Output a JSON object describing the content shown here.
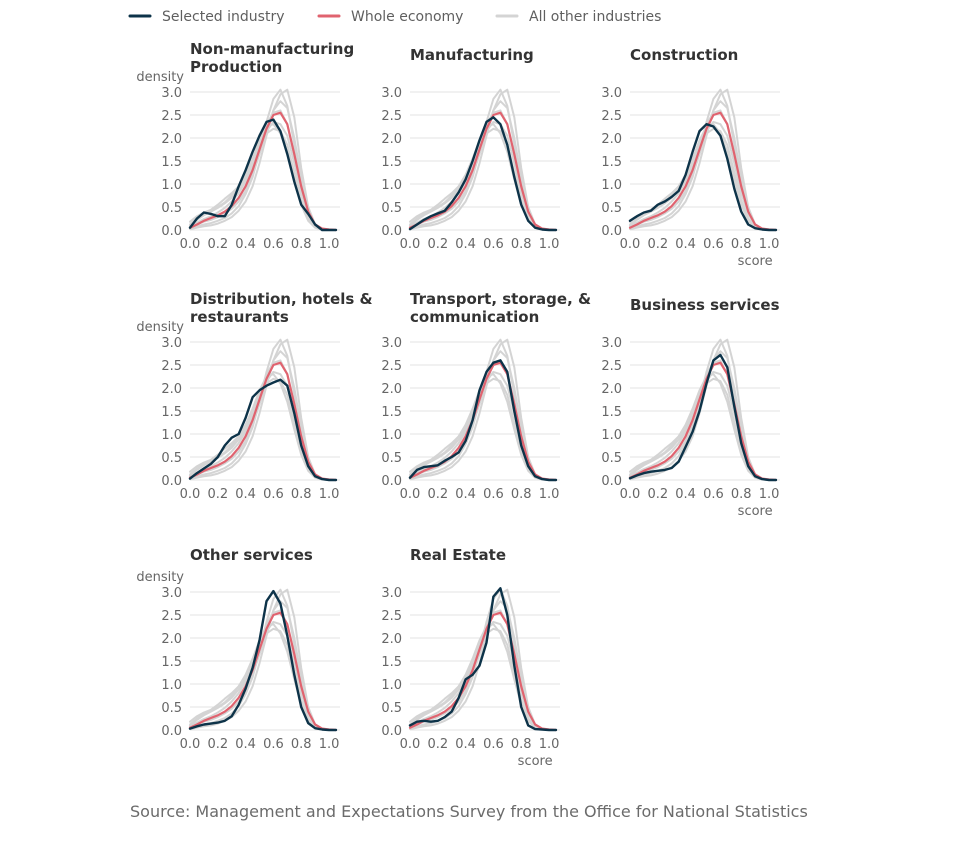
{
  "legend": [
    {
      "label": "Selected industry",
      "color": "#0d3349",
      "key": "selected"
    },
    {
      "label": "Whole economy",
      "color": "#e0636f",
      "key": "whole"
    },
    {
      "label": "All other industries",
      "color": "#d4d4d4",
      "key": "other"
    }
  ],
  "source": "Source: Management and Expectations Survey from the Office for National Statistics",
  "chart_data": {
    "type": "line",
    "xlabel": "score",
    "ylabel": "density",
    "xlim": [
      0,
      1.05
    ],
    "ylim": [
      0,
      3.0
    ],
    "xticks": [
      0.0,
      0.2,
      0.4,
      0.6,
      0.8,
      1.0
    ],
    "yticks": [
      0.0,
      0.5,
      1.0,
      1.5,
      2.0,
      2.5,
      3.0
    ],
    "grid": "horizontal",
    "legend_position": "top",
    "x": [
      0.0,
      0.05,
      0.1,
      0.15,
      0.2,
      0.25,
      0.3,
      0.35,
      0.4,
      0.45,
      0.5,
      0.55,
      0.6,
      0.65,
      0.7,
      0.75,
      0.8,
      0.85,
      0.9,
      0.95,
      1.0,
      1.05
    ],
    "whole_economy": [
      0.05,
      0.12,
      0.2,
      0.26,
      0.32,
      0.4,
      0.52,
      0.7,
      0.95,
      1.3,
      1.75,
      2.2,
      2.5,
      2.55,
      2.3,
      1.65,
      0.95,
      0.4,
      0.12,
      0.03,
      0.01,
      0.0
    ],
    "other_industries": [
      [
        0.18,
        0.3,
        0.38,
        0.44,
        0.55,
        0.68,
        0.8,
        0.95,
        1.15,
        1.45,
        1.8,
        2.1,
        2.2,
        2.15,
        1.85,
        1.25,
        0.65,
        0.25,
        0.07,
        0.02,
        0.0,
        0.0
      ],
      [
        0.1,
        0.22,
        0.32,
        0.4,
        0.48,
        0.58,
        0.7,
        0.88,
        1.1,
        1.4,
        1.8,
        2.15,
        2.35,
        2.3,
        2.05,
        1.45,
        0.8,
        0.35,
        0.1,
        0.02,
        0.0,
        0.0
      ],
      [
        0.04,
        0.08,
        0.12,
        0.15,
        0.2,
        0.26,
        0.36,
        0.52,
        0.78,
        1.15,
        1.7,
        2.35,
        2.85,
        3.05,
        2.7,
        1.85,
        0.95,
        0.35,
        0.1,
        0.02,
        0.0,
        0.0
      ],
      [
        0.02,
        0.05,
        0.08,
        0.1,
        0.14,
        0.2,
        0.28,
        0.42,
        0.62,
        0.95,
        1.45,
        2.05,
        2.6,
        2.95,
        3.05,
        2.45,
        1.35,
        0.5,
        0.12,
        0.02,
        0.0,
        0.0
      ],
      [
        0.08,
        0.16,
        0.24,
        0.3,
        0.38,
        0.48,
        0.62,
        0.8,
        1.05,
        1.4,
        1.85,
        2.3,
        2.55,
        2.6,
        2.3,
        1.6,
        0.9,
        0.4,
        0.12,
        0.03,
        0.01,
        0.0
      ],
      [
        0.12,
        0.25,
        0.35,
        0.42,
        0.5,
        0.6,
        0.75,
        0.95,
        1.2,
        1.55,
        1.95,
        2.25,
        2.3,
        2.1,
        1.7,
        1.1,
        0.55,
        0.2,
        0.05,
        0.01,
        0.0,
        0.0
      ],
      [
        0.06,
        0.12,
        0.18,
        0.22,
        0.28,
        0.36,
        0.46,
        0.62,
        0.85,
        1.2,
        1.65,
        2.15,
        2.6,
        2.8,
        2.65,
        2.0,
        1.15,
        0.45,
        0.12,
        0.02,
        0.0,
        0.0
      ]
    ],
    "panels": [
      {
        "title_lines": [
          "Non-manufacturing",
          "Production"
        ],
        "selected": [
          0.05,
          0.25,
          0.38,
          0.35,
          0.3,
          0.3,
          0.55,
          0.95,
          1.3,
          1.7,
          2.05,
          2.35,
          2.4,
          2.15,
          1.65,
          1.05,
          0.55,
          0.35,
          0.12,
          0.0,
          0.0,
          0.0
        ]
      },
      {
        "title_lines": [
          "Manufacturing"
        ],
        "selected": [
          0.02,
          0.12,
          0.22,
          0.3,
          0.36,
          0.42,
          0.6,
          0.82,
          1.1,
          1.5,
          1.95,
          2.35,
          2.45,
          2.3,
          1.85,
          1.15,
          0.55,
          0.2,
          0.05,
          0.01,
          0.0,
          0.0
        ]
      },
      {
        "title_lines": [
          "Construction"
        ],
        "selected": [
          0.2,
          0.3,
          0.38,
          0.42,
          0.55,
          0.62,
          0.72,
          0.85,
          1.2,
          1.7,
          2.15,
          2.3,
          2.25,
          2.05,
          1.55,
          0.9,
          0.4,
          0.12,
          0.04,
          0.01,
          0.0,
          0.0
        ]
      },
      {
        "title_lines": [
          "Distribution, hotels &",
          "restaurants"
        ],
        "selected": [
          0.03,
          0.15,
          0.25,
          0.35,
          0.5,
          0.75,
          0.92,
          1.0,
          1.35,
          1.8,
          1.95,
          2.05,
          2.12,
          2.18,
          2.05,
          1.45,
          0.75,
          0.3,
          0.08,
          0.02,
          0.0,
          0.0
        ]
      },
      {
        "title_lines": [
          "Transport, storage, &",
          "communication"
        ],
        "selected": [
          0.05,
          0.22,
          0.28,
          0.3,
          0.32,
          0.42,
          0.5,
          0.6,
          0.85,
          1.3,
          1.95,
          2.35,
          2.55,
          2.6,
          2.35,
          1.5,
          0.75,
          0.3,
          0.08,
          0.02,
          0.0,
          0.0
        ]
      },
      {
        "title_lines": [
          "Business services"
        ],
        "selected": [
          0.04,
          0.1,
          0.15,
          0.18,
          0.2,
          0.22,
          0.26,
          0.4,
          0.72,
          1.05,
          1.5,
          2.1,
          2.6,
          2.72,
          2.45,
          1.6,
          0.8,
          0.3,
          0.08,
          0.02,
          0.0,
          0.0
        ]
      },
      {
        "title_lines": [
          "Other services"
        ],
        "selected": [
          0.03,
          0.08,
          0.12,
          0.14,
          0.16,
          0.2,
          0.3,
          0.55,
          0.9,
          1.35,
          1.95,
          2.8,
          3.02,
          2.75,
          2.05,
          1.2,
          0.5,
          0.15,
          0.04,
          0.01,
          0.0,
          0.0
        ]
      },
      {
        "title_lines": [
          "Real Estate"
        ],
        "selected": [
          0.1,
          0.18,
          0.2,
          0.18,
          0.2,
          0.28,
          0.4,
          0.7,
          1.1,
          1.2,
          1.4,
          1.9,
          2.9,
          3.08,
          2.5,
          1.4,
          0.5,
          0.1,
          0.02,
          0.01,
          0.0,
          0.0
        ]
      }
    ]
  }
}
